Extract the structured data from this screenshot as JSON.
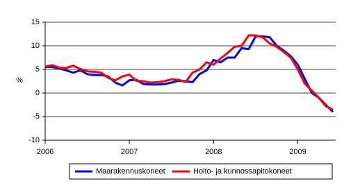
{
  "chart_data": {
    "type": "line",
    "y_label": "%",
    "x": [
      2006,
      2006.083,
      2006.167,
      2006.25,
      2006.333,
      2006.417,
      2006.5,
      2006.583,
      2006.667,
      2006.75,
      2006.833,
      2006.917,
      2007,
      2007.083,
      2007.167,
      2007.25,
      2007.333,
      2007.417,
      2007.5,
      2007.583,
      2007.667,
      2007.75,
      2007.833,
      2007.917,
      2008,
      2008.083,
      2008.167,
      2008.25,
      2008.333,
      2008.417,
      2008.5,
      2008.583,
      2008.667,
      2008.75,
      2008.833,
      2008.917,
      2009,
      2009.083,
      2009.167,
      2009.25,
      2009.333,
      2009.417
    ],
    "series": [
      {
        "name": "Maarakennuskoneet",
        "color": "#0000ff",
        "values": [
          5.5,
          5.5,
          5.2,
          4.8,
          4.3,
          4.8,
          4.0,
          3.8,
          3.8,
          3.5,
          2.2,
          1.6,
          2.7,
          2.8,
          1.9,
          1.8,
          1.8,
          1.9,
          2.2,
          2.6,
          2.5,
          2.3,
          4.0,
          4.8,
          7.0,
          6.5,
          7.5,
          7.5,
          9.5,
          9.3,
          12.0,
          12.0,
          11.8,
          10.0,
          9.0,
          7.8,
          6.0,
          3.0,
          0.0,
          -1.0,
          -2.5,
          -4.0
        ]
      },
      {
        "name": "Hoito- ja kunnossapitokoneet",
        "color": "#ff0000",
        "values": [
          5.6,
          5.9,
          5.4,
          5.3,
          5.8,
          5.1,
          4.6,
          4.5,
          4.3,
          3.2,
          2.7,
          3.5,
          3.9,
          2.6,
          2.5,
          2.2,
          2.3,
          2.5,
          2.9,
          2.8,
          2.3,
          4.3,
          5.0,
          6.5,
          6.0,
          7.3,
          8.5,
          9.8,
          10.0,
          12.2,
          12.2,
          11.8,
          10.5,
          9.8,
          8.7,
          7.5,
          5.0,
          2.0,
          0.5,
          -1.0,
          -2.8,
          -3.5
        ]
      }
    ],
    "xlim": [
      2006,
      2009.45
    ],
    "xticks": [
      2006,
      2007,
      2008,
      2009
    ],
    "ylim": [
      -10,
      15
    ],
    "yticks": [
      -10,
      -5,
      0,
      5,
      10,
      15
    ],
    "grid": true
  }
}
